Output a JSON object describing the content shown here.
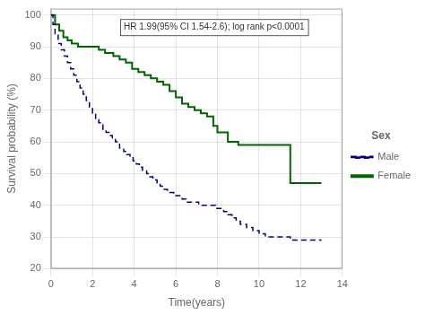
{
  "chart_data": {
    "type": "step",
    "xlabel": "Time(years)",
    "ylabel": "Survival probability (%)",
    "annotation": "HR 1.99(95% CI 1.54-2.6); log rank p<0.0001",
    "xlim": [
      0,
      14
    ],
    "ylim": [
      20,
      102
    ],
    "xticks": [
      0,
      2,
      4,
      6,
      8,
      10,
      12,
      14
    ],
    "yticks": [
      20,
      30,
      40,
      50,
      60,
      70,
      80,
      90,
      100
    ],
    "grid": true,
    "legend": "right",
    "legend_title": "Sex",
    "series": [
      {
        "name": "Male",
        "color": "#00008B",
        "line_style": "dashed",
        "x": [
          0,
          0.1,
          0.2,
          0.35,
          0.5,
          0.65,
          0.8,
          0.95,
          1.1,
          1.25,
          1.4,
          1.55,
          1.7,
          1.85,
          2.0,
          2.15,
          2.3,
          2.5,
          2.65,
          2.8,
          2.95,
          3.1,
          3.3,
          3.5,
          3.65,
          3.8,
          3.95,
          4.1,
          4.25,
          4.4,
          4.6,
          4.75,
          4.9,
          5.1,
          5.25,
          5.4,
          5.6,
          5.75,
          5.9,
          6.1,
          6.3,
          6.5,
          6.7,
          6.9,
          7.1,
          7.3,
          7.5,
          7.7,
          7.9,
          8.1,
          8.3,
          8.5,
          8.7,
          8.9,
          9.1,
          9.4,
          9.7,
          10.0,
          10.3,
          10.6,
          10.9,
          11.2,
          11.5,
          12.0,
          12.5,
          13.0
        ],
        "values": [
          100,
          97,
          94,
          91,
          89,
          87,
          85,
          83,
          81,
          79,
          77,
          75,
          73,
          71,
          69,
          67,
          66,
          64,
          63,
          62,
          61,
          60,
          58,
          57,
          56,
          55,
          54,
          53,
          52,
          51,
          50,
          49,
          48,
          47,
          46,
          45,
          44,
          44,
          43,
          43,
          42,
          41,
          41,
          41,
          40,
          40,
          40,
          40,
          39,
          39,
          38,
          37,
          36,
          35,
          34,
          33,
          32,
          31,
          30,
          30,
          30,
          30,
          29,
          29,
          29,
          29
        ]
      },
      {
        "name": "Female",
        "color": "#006400",
        "line_style": "solid",
        "x": [
          0,
          0.2,
          0.4,
          0.6,
          0.8,
          1.0,
          1.3,
          1.6,
          2.0,
          2.3,
          2.6,
          3.0,
          3.3,
          3.6,
          3.9,
          4.2,
          4.5,
          4.8,
          5.1,
          5.4,
          5.7,
          6.0,
          6.3,
          6.6,
          6.9,
          7.2,
          7.5,
          7.8,
          8.0,
          8.5,
          9.0,
          9.5,
          10.0,
          10.5,
          11.0,
          11.5,
          12.0,
          12.5,
          13.0
        ],
        "values": [
          100,
          97,
          95,
          93,
          92,
          91,
          90,
          90,
          90,
          89,
          88,
          87,
          86,
          85,
          83,
          82,
          81,
          80,
          79,
          78,
          76,
          74,
          72,
          71,
          70,
          69,
          68,
          65,
          63,
          60,
          59,
          59,
          59,
          59,
          59,
          47,
          47,
          47,
          47
        ]
      }
    ]
  }
}
